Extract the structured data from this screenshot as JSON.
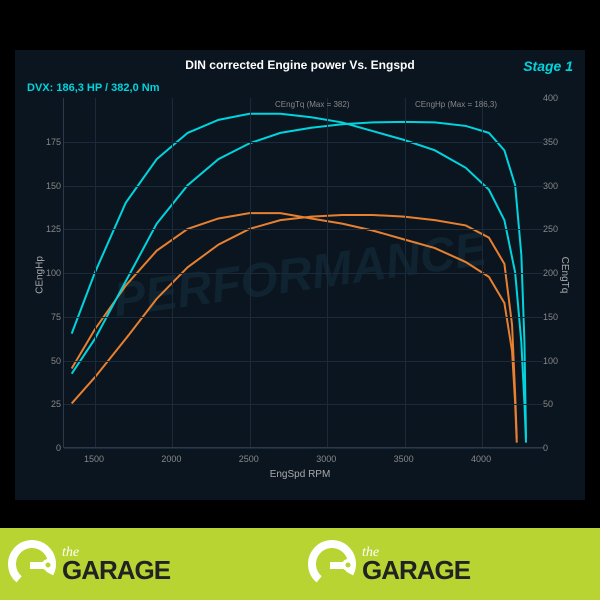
{
  "chart": {
    "title": "DIN corrected Engine power Vs. Engspd",
    "stage_label": "Stage 1",
    "dvx_label": "DVX: 186,3 HP / 382,0 Nm",
    "xlabel": "EngSpd RPM",
    "ylabel_left": "CEngHp",
    "ylabel_right": "CEngTq",
    "legend_tq": "CEngTq (Max = 382)",
    "legend_hp": "CEngHp (Max = 186,3)",
    "background": "#0a1520",
    "grid_color": "#1a2a3a",
    "text_color": "#ffffff",
    "accent_color": "#00d4dd",
    "xlim": [
      1300,
      4400
    ],
    "ylim_left": [
      0,
      200
    ],
    "ylim_right": [
      0,
      400
    ],
    "xticks": [
      1500,
      2000,
      2500,
      3000,
      3500,
      4000
    ],
    "yticks_left": [
      0,
      25,
      50,
      75,
      100,
      125,
      150,
      175
    ],
    "yticks_right": [
      0,
      50,
      100,
      150,
      200,
      250,
      300,
      350,
      400
    ],
    "series": {
      "hp_tuned": {
        "color": "#00d4dd",
        "width": 2,
        "points": [
          [
            1350,
            42
          ],
          [
            1500,
            62
          ],
          [
            1700,
            95
          ],
          [
            1900,
            128
          ],
          [
            2100,
            150
          ],
          [
            2300,
            165
          ],
          [
            2500,
            174
          ],
          [
            2700,
            180
          ],
          [
            2900,
            183
          ],
          [
            3100,
            185
          ],
          [
            3300,
            186
          ],
          [
            3500,
            186.3
          ],
          [
            3700,
            186
          ],
          [
            3900,
            184
          ],
          [
            4050,
            180
          ],
          [
            4150,
            170
          ],
          [
            4220,
            150
          ],
          [
            4260,
            110
          ],
          [
            4280,
            60
          ],
          [
            4290,
            5
          ]
        ]
      },
      "tq_tuned": {
        "color": "#00d4dd",
        "width": 2,
        "points": [
          [
            1350,
            130
          ],
          [
            1500,
            200
          ],
          [
            1700,
            280
          ],
          [
            1900,
            330
          ],
          [
            2100,
            360
          ],
          [
            2300,
            375
          ],
          [
            2500,
            382
          ],
          [
            2700,
            382
          ],
          [
            2900,
            378
          ],
          [
            3100,
            372
          ],
          [
            3300,
            362
          ],
          [
            3500,
            352
          ],
          [
            3700,
            340
          ],
          [
            3900,
            320
          ],
          [
            4050,
            295
          ],
          [
            4150,
            260
          ],
          [
            4220,
            200
          ],
          [
            4260,
            120
          ],
          [
            4280,
            50
          ],
          [
            4290,
            5
          ]
        ]
      },
      "hp_stock": {
        "color": "#e88030",
        "width": 2,
        "points": [
          [
            1350,
            25
          ],
          [
            1500,
            40
          ],
          [
            1700,
            62
          ],
          [
            1900,
            85
          ],
          [
            2100,
            103
          ],
          [
            2300,
            116
          ],
          [
            2500,
            125
          ],
          [
            2700,
            130
          ],
          [
            2900,
            132
          ],
          [
            3100,
            133
          ],
          [
            3300,
            133
          ],
          [
            3500,
            132
          ],
          [
            3700,
            130
          ],
          [
            3900,
            127
          ],
          [
            4050,
            120
          ],
          [
            4150,
            105
          ],
          [
            4200,
            70
          ],
          [
            4220,
            30
          ],
          [
            4230,
            5
          ]
        ]
      },
      "tq_stock": {
        "color": "#e88030",
        "width": 2,
        "points": [
          [
            1350,
            90
          ],
          [
            1500,
            135
          ],
          [
            1700,
            185
          ],
          [
            1900,
            225
          ],
          [
            2100,
            250
          ],
          [
            2300,
            262
          ],
          [
            2500,
            268
          ],
          [
            2700,
            268
          ],
          [
            2900,
            262
          ],
          [
            3100,
            256
          ],
          [
            3300,
            248
          ],
          [
            3500,
            238
          ],
          [
            3700,
            228
          ],
          [
            3900,
            212
          ],
          [
            4050,
            195
          ],
          [
            4150,
            165
          ],
          [
            4200,
            110
          ],
          [
            4220,
            50
          ],
          [
            4230,
            5
          ]
        ]
      }
    }
  },
  "footer": {
    "bg": "#b8d432",
    "the": "the",
    "garage": "GARAGE",
    "the_color": "#ffffff",
    "garage_color": "#222222"
  }
}
